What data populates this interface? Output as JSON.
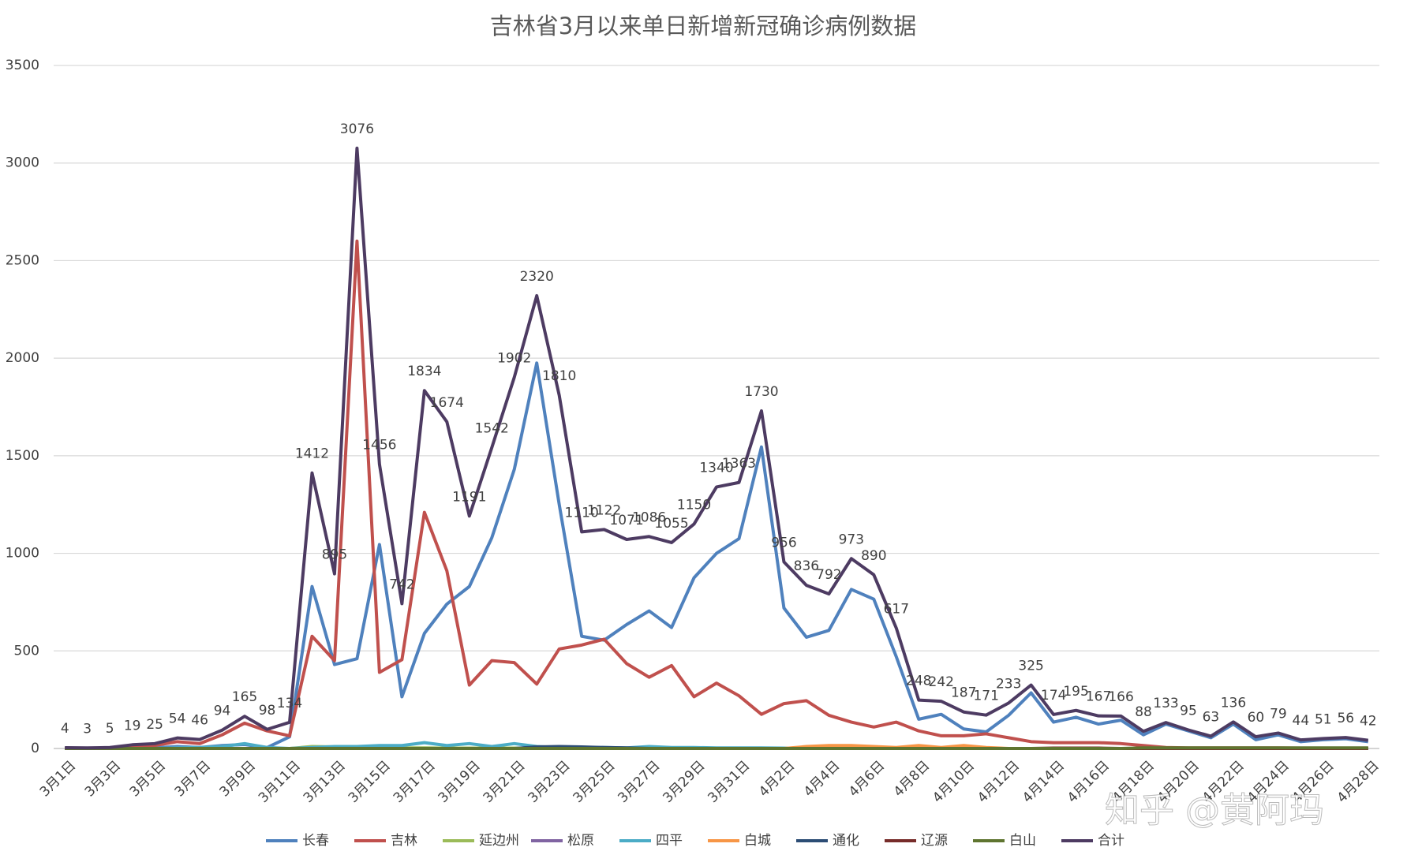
{
  "chart_data": {
    "type": "line",
    "title": "吉林省3月以来单日新增新冠确诊病例数据",
    "watermark": "知乎 @黄阿玛",
    "categories": [
      "3月1日",
      null,
      "3月3日",
      null,
      "3月5日",
      null,
      "3月7日",
      null,
      "3月9日",
      null,
      "3月11日",
      null,
      "3月13日",
      null,
      "3月15日",
      null,
      "3月17日",
      null,
      "3月19日",
      null,
      "3月21日",
      null,
      "3月23日",
      null,
      "3月25日",
      null,
      "3月27日",
      null,
      "3月29日",
      null,
      "3月31日",
      null,
      "4月2日",
      null,
      "4月4日",
      null,
      "4月6日",
      null,
      "4月8日",
      null,
      "4月10日",
      null,
      "4月12日",
      null,
      "4月14日",
      null,
      "4月16日",
      null,
      "4月18日",
      null,
      "4月20日",
      null,
      "4月22日",
      null,
      "4月24日",
      null,
      "4月26日",
      null,
      "4月28日"
    ],
    "ylim": [
      0,
      3500
    ],
    "yticks": [
      0,
      500,
      1000,
      1500,
      2000,
      2500,
      3000,
      3500
    ],
    "grid": true,
    "legend": "bottom",
    "labeled_series": "合计",
    "series": [
      {
        "name": "长春",
        "color": "#4f81bd",
        "values": [
          0,
          0,
          0,
          2,
          3,
          10,
          5,
          15,
          20,
          5,
          60,
          830,
          430,
          460,
          1045,
          265,
          590,
          740,
          830,
          1080,
          1430,
          1975,
          1250,
          575,
          555,
          635,
          705,
          620,
          875,
          1000,
          1075,
          1545,
          720,
          570,
          605,
          815,
          765,
          470,
          150,
          175,
          100,
          85,
          170,
          285,
          135,
          160,
          125,
          145,
          70,
          125,
          90,
          55,
          125,
          45,
          70,
          35,
          45,
          50,
          35
        ]
      },
      {
        "name": "吉林",
        "color": "#c0504d",
        "values": [
          2,
          1,
          2,
          10,
          15,
          35,
          25,
          70,
          130,
          90,
          65,
          575,
          450,
          2600,
          390,
          455,
          1210,
          910,
          325,
          450,
          440,
          330,
          510,
          530,
          560,
          435,
          365,
          425,
          265,
          335,
          270,
          175,
          230,
          245,
          170,
          135,
          110,
          135,
          90,
          65,
          65,
          75,
          55,
          35,
          30,
          30,
          30,
          25,
          15,
          5,
          3,
          3,
          3,
          3,
          3,
          2,
          2,
          2,
          2
        ]
      },
      {
        "name": "延边州",
        "color": "#9bbb59",
        "values": [
          0,
          0,
          0,
          0,
          0,
          0,
          0,
          0,
          0,
          0,
          0,
          10,
          8,
          10,
          5,
          3,
          3,
          2,
          2,
          2,
          2,
          0,
          0,
          0,
          0,
          0,
          0,
          0,
          0,
          0,
          0,
          0,
          0,
          0,
          0,
          0,
          0,
          0,
          0,
          0,
          0,
          0,
          0,
          0,
          0,
          0,
          0,
          0,
          0,
          0,
          0,
          0,
          0,
          0,
          0,
          0,
          0,
          0,
          0
        ]
      },
      {
        "name": "松原",
        "color": "#8064a2",
        "values": [
          0,
          0,
          0,
          0,
          0,
          0,
          0,
          0,
          0,
          0,
          0,
          2,
          2,
          3,
          2,
          0,
          0,
          0,
          0,
          0,
          0,
          0,
          0,
          0,
          0,
          0,
          0,
          0,
          0,
          0,
          0,
          0,
          0,
          0,
          0,
          0,
          0,
          0,
          0,
          0,
          0,
          0,
          0,
          0,
          0,
          0,
          0,
          0,
          0,
          0,
          0,
          0,
          0,
          0,
          0,
          0,
          0,
          0,
          0
        ]
      },
      {
        "name": "四平",
        "color": "#4bacc6",
        "values": [
          0,
          0,
          0,
          0,
          0,
          3,
          5,
          10,
          25,
          5,
          0,
          5,
          10,
          10,
          15,
          15,
          30,
          15,
          25,
          10,
          25,
          10,
          5,
          5,
          5,
          3,
          10,
          5,
          5,
          3,
          3,
          3,
          2,
          0,
          0,
          0,
          0,
          0,
          0,
          0,
          0,
          0,
          0,
          0,
          0,
          0,
          0,
          0,
          0,
          0,
          0,
          0,
          0,
          0,
          0,
          0,
          0,
          0,
          0
        ]
      },
      {
        "name": "白城",
        "color": "#f79646",
        "values": [
          0,
          0,
          0,
          0,
          0,
          0,
          0,
          0,
          0,
          0,
          0,
          0,
          0,
          0,
          0,
          0,
          0,
          0,
          0,
          0,
          0,
          0,
          0,
          0,
          0,
          0,
          0,
          0,
          0,
          0,
          0,
          0,
          0,
          10,
          15,
          15,
          10,
          5,
          15,
          5,
          15,
          5,
          0,
          0,
          0,
          0,
          0,
          0,
          0,
          0,
          0,
          0,
          0,
          0,
          0,
          0,
          0,
          0,
          0
        ]
      },
      {
        "name": "通化",
        "color": "#2c4d75",
        "values": [
          0,
          0,
          0,
          0,
          0,
          0,
          0,
          0,
          0,
          0,
          0,
          0,
          0,
          0,
          0,
          0,
          0,
          0,
          0,
          0,
          0,
          8,
          10,
          8,
          5,
          3,
          0,
          0,
          0,
          0,
          0,
          0,
          0,
          0,
          0,
          0,
          0,
          0,
          0,
          0,
          0,
          0,
          0,
          0,
          0,
          0,
          0,
          0,
          0,
          0,
          0,
          0,
          0,
          0,
          0,
          0,
          0,
          0,
          0
        ]
      },
      {
        "name": "辽源",
        "color": "#772c2a",
        "values": [
          0,
          0,
          0,
          0,
          0,
          0,
          0,
          0,
          0,
          0,
          0,
          0,
          0,
          0,
          0,
          0,
          0,
          0,
          0,
          0,
          0,
          0,
          0,
          0,
          0,
          0,
          0,
          0,
          0,
          0,
          0,
          0,
          0,
          0,
          0,
          0,
          0,
          0,
          0,
          0,
          0,
          0,
          0,
          0,
          2,
          2,
          2,
          0,
          0,
          0,
          0,
          0,
          0,
          0,
          0,
          0,
          0,
          0,
          0
        ]
      },
      {
        "name": "白山",
        "color": "#5f7530",
        "values": [
          0,
          0,
          0,
          0,
          0,
          0,
          0,
          0,
          0,
          0,
          0,
          0,
          0,
          0,
          0,
          0,
          0,
          0,
          0,
          0,
          0,
          0,
          0,
          0,
          0,
          0,
          0,
          0,
          0,
          0,
          0,
          0,
          0,
          0,
          0,
          0,
          0,
          0,
          0,
          0,
          0,
          0,
          0,
          0,
          0,
          0,
          0,
          0,
          3,
          3,
          3,
          3,
          3,
          3,
          3,
          3,
          3,
          3,
          3
        ]
      },
      {
        "name": "合计",
        "color": "#4d3b62",
        "values": [
          4,
          3,
          5,
          19,
          25,
          54,
          46,
          94,
          165,
          98,
          134,
          1412,
          895,
          3076,
          1456,
          742,
          1834,
          1674,
          1191,
          1542,
          1902,
          2320,
          1810,
          1110,
          1122,
          1071,
          1086,
          1055,
          1150,
          1340,
          1363,
          1730,
          956,
          836,
          792,
          973,
          890,
          617,
          248,
          242,
          187,
          171,
          233,
          325,
          174,
          195,
          167,
          166,
          88,
          133,
          95,
          63,
          136,
          60,
          79,
          44,
          51,
          56,
          42
        ]
      }
    ]
  }
}
